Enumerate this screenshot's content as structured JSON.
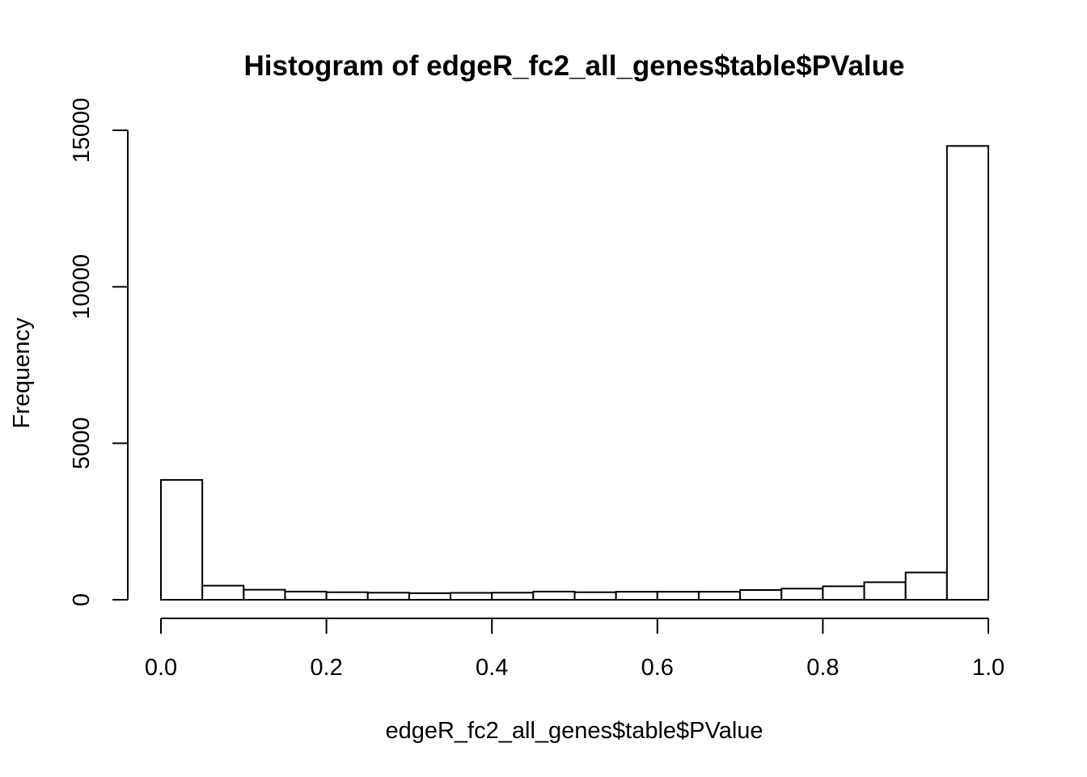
{
  "chart_data": {
    "type": "bar",
    "title": "Histogram of edgeR_fc2_all_genes$table$PValue",
    "xlabel": "edgeR_fc2_all_genes$table$PValue",
    "ylabel": "Frequency",
    "xlim": [
      0,
      1
    ],
    "ylim": [
      0,
      15000
    ],
    "xticks": [
      "0.0",
      "0.2",
      "0.4",
      "0.6",
      "0.8",
      "1.0"
    ],
    "yticks": [
      "0",
      "5000",
      "10000",
      "15000"
    ],
    "bin_width": 0.05,
    "bins": [
      {
        "x0": 0.0,
        "x1": 0.05,
        "count": 3830
      },
      {
        "x0": 0.05,
        "x1": 0.1,
        "count": 450
      },
      {
        "x0": 0.1,
        "x1": 0.15,
        "count": 320
      },
      {
        "x0": 0.15,
        "x1": 0.2,
        "count": 260
      },
      {
        "x0": 0.2,
        "x1": 0.25,
        "count": 240
      },
      {
        "x0": 0.25,
        "x1": 0.3,
        "count": 225
      },
      {
        "x0": 0.3,
        "x1": 0.35,
        "count": 210
      },
      {
        "x0": 0.35,
        "x1": 0.4,
        "count": 220
      },
      {
        "x0": 0.4,
        "x1": 0.45,
        "count": 225
      },
      {
        "x0": 0.45,
        "x1": 0.5,
        "count": 260
      },
      {
        "x0": 0.5,
        "x1": 0.55,
        "count": 240
      },
      {
        "x0": 0.55,
        "x1": 0.6,
        "count": 255
      },
      {
        "x0": 0.6,
        "x1": 0.65,
        "count": 255
      },
      {
        "x0": 0.65,
        "x1": 0.7,
        "count": 255
      },
      {
        "x0": 0.7,
        "x1": 0.75,
        "count": 310
      },
      {
        "x0": 0.75,
        "x1": 0.8,
        "count": 355
      },
      {
        "x0": 0.8,
        "x1": 0.85,
        "count": 430
      },
      {
        "x0": 0.85,
        "x1": 0.9,
        "count": 560
      },
      {
        "x0": 0.9,
        "x1": 0.95,
        "count": 870
      },
      {
        "x0": 0.95,
        "x1": 1.0,
        "count": 14500
      }
    ],
    "grid": false,
    "legend": "none"
  }
}
